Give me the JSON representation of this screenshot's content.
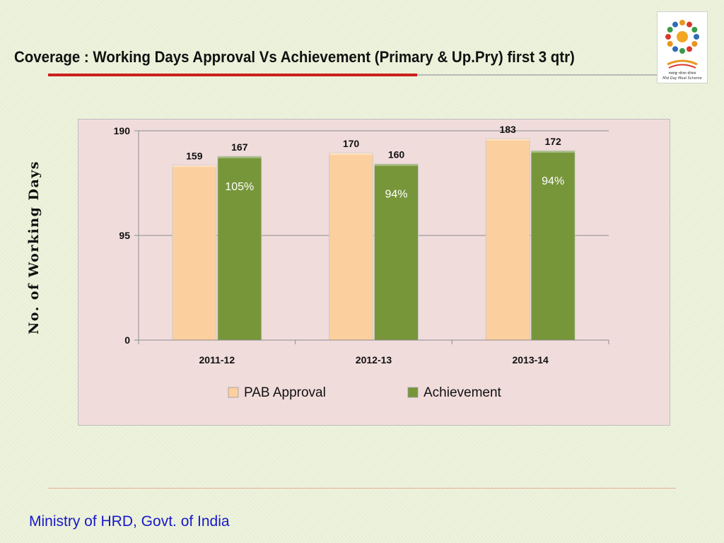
{
  "slide": {
    "title": "Coverage : Working Days Approval Vs Achievement (Primary & Up.Pry) first 3 qtr)",
    "footer": "Ministry of HRD, Govt. of India",
    "logo": {
      "text_line1": "मध्याह्न भोजन योजना",
      "text_line2": "Mid Day Meal Scheme"
    }
  },
  "chart_data": {
    "type": "bar",
    "categories": [
      "2011-12",
      "2012-13",
      "2013-14"
    ],
    "series": [
      {
        "name": "PAB Approval",
        "values": [
          159,
          170,
          183
        ],
        "color": "#fccf9f"
      },
      {
        "name": "Achievement",
        "values": [
          167,
          160,
          172
        ],
        "color": "#77963a"
      }
    ],
    "annotations": [
      "105%",
      "94%",
      "94%"
    ],
    "ylabel": "No. of Working Days",
    "yticks": [
      0,
      95,
      190
    ],
    "ylim": [
      0,
      190
    ],
    "legend_position": "bottom",
    "grid": true
  }
}
